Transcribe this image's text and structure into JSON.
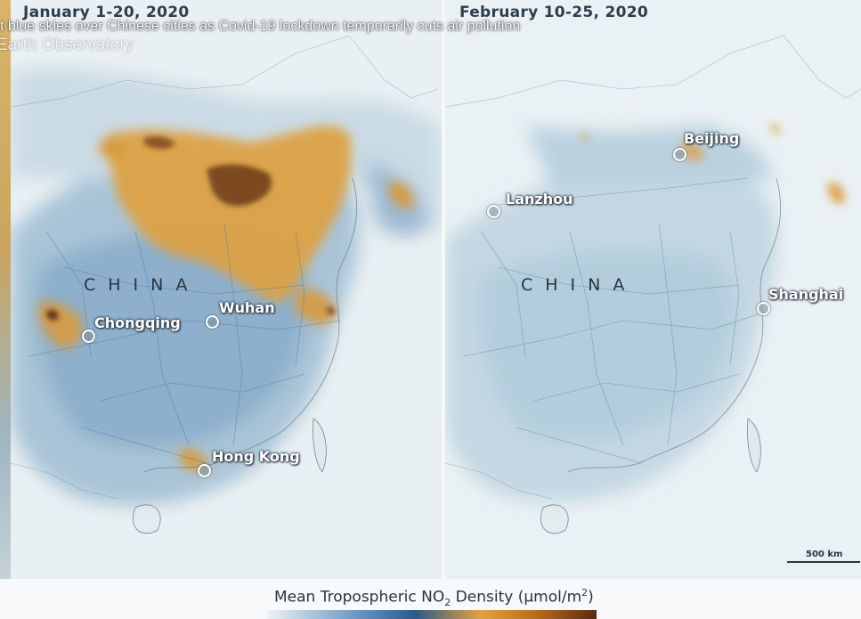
{
  "video_overlay": {
    "title": "t blue skies over Chinese cities as Covid-19 lockdown temporarily cuts air pollution",
    "source": "Earth Observatory"
  },
  "left_map": {
    "date_range": "January 1-20, 2020",
    "country_label": "CHINA",
    "cities": [
      {
        "name": "Chongqing"
      },
      {
        "name": "Wuhan"
      },
      {
        "name": "Hong Kong"
      }
    ]
  },
  "right_map": {
    "date_range": "February 10-25, 2020",
    "country_label": "CHINA",
    "cities": [
      {
        "name": "Beijing"
      },
      {
        "name": "Lanzhou"
      },
      {
        "name": "Shanghai"
      }
    ],
    "scale_label": "500 km"
  },
  "legend": {
    "title_prefix": "Mean Tropospheric NO",
    "title_sub": "2",
    "title_mid": " Density (μmol/m",
    "title_sup": "2",
    "title_suffix": ")"
  },
  "colors": {
    "low": "#eef3f5",
    "mid": "#5c8fbd",
    "high": "#e3a23c",
    "very_high": "#5a2a10"
  }
}
